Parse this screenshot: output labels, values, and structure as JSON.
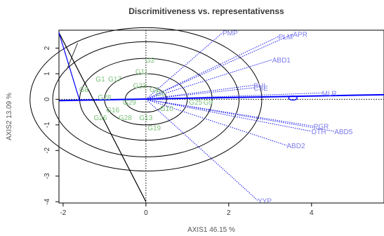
{
  "chart_data": {
    "type": "scatter",
    "title": "Discrimitiveness vs. representativenss",
    "xlabel": "AXIS1 46.15 %",
    "ylabel": "AXIS2 13.09 %",
    "xlim": [
      -2.1,
      5.75
    ],
    "ylim": [
      -4.05,
      2.7
    ],
    "x_ticks": [
      "-2",
      "0",
      "2",
      "4"
    ],
    "x_tick_values": [
      -2,
      0,
      2,
      4
    ],
    "y_ticks": [
      "-4",
      "-3",
      "-2",
      "-1",
      "0",
      "1",
      "2"
    ],
    "y_tick_values": [
      -4,
      -3,
      -2,
      -1,
      0,
      1,
      2
    ],
    "grid": false,
    "legend": "none",
    "colors": {
      "genotype": "#7ac07a",
      "environment": "#7b79ec",
      "vector": "#1a1aee",
      "circle": "#000000",
      "aec": "#0000ff"
    },
    "concentric_circle_radii": [
      0.5,
      1.0,
      1.6,
      2.25,
      2.8
    ],
    "genotypes": [
      {
        "label": "G2",
        "x": 0.1,
        "y": 1.55
      },
      {
        "label": "G11",
        "x": -0.1,
        "y": 1.1
      },
      {
        "label": "G1",
        "x": -1.1,
        "y": 0.8
      },
      {
        "label": "G17",
        "x": -0.75,
        "y": 0.8
      },
      {
        "label": "G23",
        "x": -0.15,
        "y": 0.55
      },
      {
        "label": "G8",
        "x": -1.5,
        "y": 0.4
      },
      {
        "label": "G4",
        "x": 0.2,
        "y": 0.4
      },
      {
        "label": "G28",
        "x": -1.0,
        "y": 0.1
      },
      {
        "label": "G29",
        "x": -0.4,
        "y": -0.1
      },
      {
        "label": "G5",
        "x": 0.35,
        "y": 0.25
      },
      {
        "label": "G16",
        "x": -0.8,
        "y": -0.4
      },
      {
        "label": "G10",
        "x": 0.5,
        "y": -0.35
      },
      {
        "label": "G25",
        "x": 1.2,
        "y": -0.1
      },
      {
        "label": "G9",
        "x": 1.5,
        "y": -0.1
      },
      {
        "label": "G26",
        "x": -1.1,
        "y": -0.7
      },
      {
        "label": "G28",
        "x": -0.5,
        "y": -0.7
      },
      {
        "label": "G13",
        "x": 0.0,
        "y": -0.7
      },
      {
        "label": "G19",
        "x": 0.2,
        "y": -1.1
      }
    ],
    "environments": [
      {
        "label": "PMP",
        "x": 1.85,
        "y": 2.6
      },
      {
        "label": "PLM",
        "x": 3.2,
        "y": 2.45
      },
      {
        "label": "APR",
        "x": 3.55,
        "y": 2.55
      },
      {
        "label": "ABD1",
        "x": 3.05,
        "y": 1.55
      },
      {
        "label": "BUL",
        "x": 2.6,
        "y": 0.55
      },
      {
        "label": "CSE",
        "x": 2.6,
        "y": 0.45
      },
      {
        "label": "MLR",
        "x": 4.25,
        "y": 0.25
      },
      {
        "label": "PGR",
        "x": 4.05,
        "y": -1.05
      },
      {
        "label": "DTH",
        "x": 4.0,
        "y": -1.25
      },
      {
        "label": "ABD5",
        "x": 4.55,
        "y": -1.25
      },
      {
        "label": "ABD2",
        "x": 3.4,
        "y": -1.8
      },
      {
        "label": "YYP",
        "x": 2.7,
        "y": -3.95
      }
    ]
  }
}
